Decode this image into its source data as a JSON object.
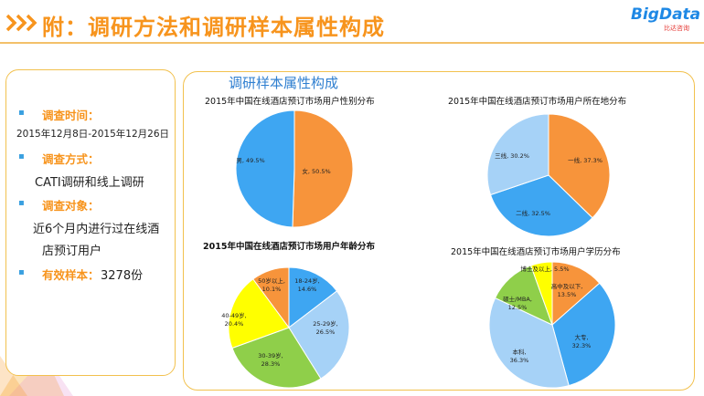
{
  "header": {
    "title": "附：调研方法和调研样本属性构成",
    "logo_text": "BigData",
    "logo_sub": "比达咨询"
  },
  "left_panel": {
    "items": [
      {
        "label": "调查时间：",
        "value": "2015年12月8日-2015年12月26日"
      },
      {
        "label": "调查方式：",
        "value": "CATI调研和线上调研"
      },
      {
        "label": "调查对象：",
        "value_lines": [
          "近6个月内进行过在线酒",
          "店预订用户"
        ]
      },
      {
        "label": "有效样本：",
        "value": "3278份"
      }
    ]
  },
  "section_title": "调研样本属性构成",
  "chart_data": [
    {
      "type": "pie",
      "title": "2015年中国在线酒店预订市场用户性别分布",
      "slices": [
        {
          "label": "女, 50.5%",
          "value": 50.5,
          "color": "#f7943b"
        },
        {
          "label": "男, 49.5%",
          "value": 49.5,
          "color": "#3ea6f2"
        }
      ]
    },
    {
      "type": "pie",
      "title": "2015年中国在线酒店预订市场用户所在地分布",
      "slices": [
        {
          "label": "一线, 37.3%",
          "value": 37.3,
          "color": "#f7943b"
        },
        {
          "label": "二线, 32.5%",
          "value": 32.5,
          "color": "#3ea6f2"
        },
        {
          "label": "三线, 30.2%",
          "value": 30.2,
          "color": "#a6d2f7"
        }
      ]
    },
    {
      "type": "pie",
      "title": "2015年中国在线酒店预订市场用户年龄分布",
      "slices": [
        {
          "label": "18-24岁, 14.6%",
          "value": 14.6,
          "color": "#3ea6f2"
        },
        {
          "label": "25-29岁, 26.5%",
          "value": 26.5,
          "color": "#a6d2f7"
        },
        {
          "label": "30-39岁, 28.3%",
          "value": 28.3,
          "color": "#8fcf4a"
        },
        {
          "label": "40-49岁, 20.4%",
          "value": 20.4,
          "color": "#ffff00"
        },
        {
          "label": "50岁以上, 10.1%",
          "value": 10.1,
          "color": "#f7943b"
        }
      ]
    },
    {
      "type": "pie",
      "title": "2015年中国在线酒店预订市场用户学历分布",
      "slices": [
        {
          "label": "高中及以下, 13.5%",
          "value": 13.5,
          "color": "#f7943b"
        },
        {
          "label": "大专, 32.3%",
          "value": 32.3,
          "color": "#3ea6f2"
        },
        {
          "label": "本科, 36.3%",
          "value": 36.3,
          "color": "#a6d2f7"
        },
        {
          "label": "硕士/MBA, 12.5%",
          "value": 12.5,
          "color": "#8fcf4a"
        },
        {
          "label": "博士及以上, 5.5%",
          "value": 5.5,
          "color": "#ffff00"
        }
      ]
    }
  ]
}
